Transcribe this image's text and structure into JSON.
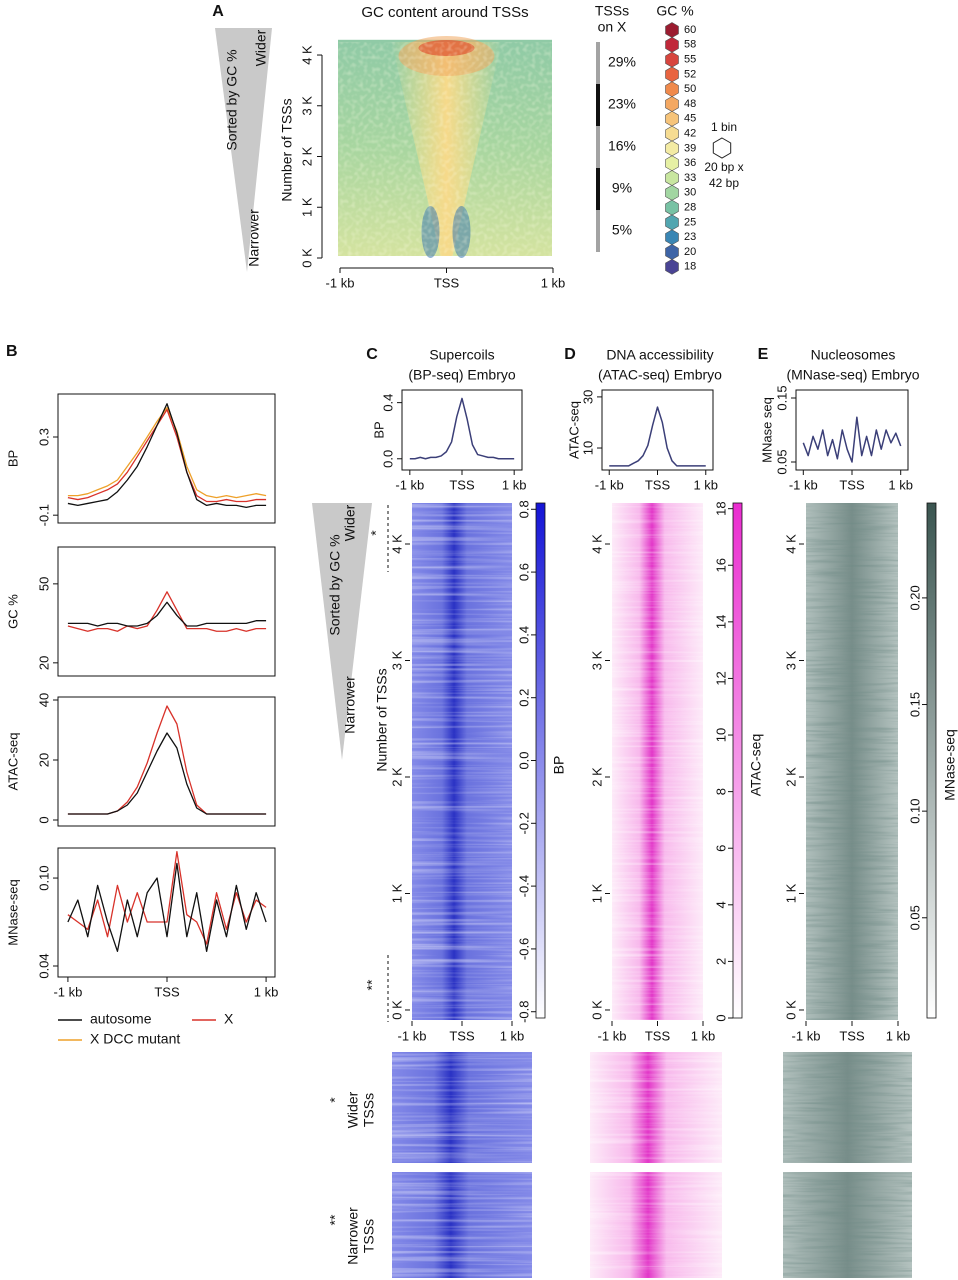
{
  "chart_data": [
    {
      "type": "heatmap",
      "panel": "A",
      "title": "GC content around TSSs",
      "ylabel": "Number of TSSs",
      "sort_label": "Sorted by GC %",
      "sort_ends": [
        "Wider",
        "Narrower"
      ],
      "xlim": [
        -1000,
        1000
      ],
      "xticks": [
        {
          "value": -1000,
          "label": "-1 kb"
        },
        {
          "value": 0,
          "label": "TSS"
        },
        {
          "value": 1000,
          "label": "1 kb"
        }
      ],
      "ylim": [
        0,
        4300
      ],
      "yticks": [
        {
          "value": 0,
          "label": "0 K"
        },
        {
          "value": 1000,
          "label": "1 K"
        },
        {
          "value": 2000,
          "label": "2 K"
        },
        {
          "value": 3000,
          "label": "3 K"
        },
        {
          "value": 4000,
          "label": "4 K"
        }
      ],
      "side_bar": {
        "title": [
          "TSSs",
          "on X"
        ],
        "values": [
          29,
          23,
          16,
          9,
          5
        ],
        "value_labels": [
          "29%",
          "23%",
          "16%",
          "9%",
          "5%"
        ],
        "colors": [
          "#a3a3a3",
          "#111111",
          "#a3a3a3",
          "#111111",
          "#a3a3a3"
        ]
      },
      "legend": {
        "title": "GC %",
        "values": [
          60,
          58,
          55,
          52,
          50,
          48,
          45,
          42,
          39,
          36,
          33,
          30,
          28,
          25,
          23,
          20,
          18
        ],
        "colors": [
          "#9b1c30",
          "#c0283a",
          "#d7453e",
          "#e86440",
          "#f08a4c",
          "#f4a862",
          "#f6c47a",
          "#f6dc92",
          "#f3eba4",
          "#e6f0a4",
          "#c8e6a0",
          "#a2d6a2",
          "#78c2a4",
          "#52a6b0",
          "#3a86b4",
          "#3e64a6",
          "#4a4494"
        ]
      },
      "bin_note": [
        "1 bin",
        "20 bp x",
        "42 bp"
      ]
    },
    {
      "type": "line",
      "panel": "B",
      "x": [
        -1000,
        -900,
        -800,
        -700,
        -600,
        -500,
        -400,
        -300,
        -200,
        -100,
        0,
        100,
        200,
        300,
        400,
        500,
        600,
        700,
        800,
        900,
        1000
      ],
      "xlim": [
        -1100,
        1090
      ],
      "xticks": [
        {
          "value": -1000,
          "label": "-1 kb"
        },
        {
          "value": 0,
          "label": "TSS"
        },
        {
          "value": 1000,
          "label": "1 kb"
        }
      ],
      "legend": [
        {
          "name": "autosome",
          "color": "#111111"
        },
        {
          "name": "X",
          "color": "#d8322a"
        },
        {
          "name": "X DCC mutant",
          "color": "#eea12a"
        }
      ],
      "rows": [
        {
          "ylabel": "BP",
          "ylim": [
            -0.14,
            0.52
          ],
          "yticks": [
            -0.1,
            0.3
          ],
          "series": [
            {
              "color": "#eea12a",
              "values": [
                0,
                0,
                0.01,
                0.03,
                0.05,
                0.08,
                0.15,
                0.22,
                0.3,
                0.38,
                0.45,
                0.33,
                0.15,
                0.03,
                0,
                -0.01,
                0,
                -0.01,
                0,
                0.01,
                0
              ]
            },
            {
              "color": "#d8322a",
              "values": [
                -0.01,
                -0.02,
                -0.01,
                0.01,
                0.03,
                0.06,
                0.12,
                0.2,
                0.28,
                0.36,
                0.44,
                0.3,
                0.12,
                0,
                -0.03,
                -0.03,
                -0.02,
                -0.03,
                -0.03,
                -0.02,
                -0.02
              ]
            },
            {
              "color": "#111111",
              "values": [
                -0.04,
                -0.05,
                -0.04,
                -0.03,
                -0.02,
                0.02,
                0.08,
                0.15,
                0.25,
                0.36,
                0.47,
                0.32,
                0.12,
                -0.02,
                -0.05,
                -0.04,
                -0.05,
                -0.05,
                -0.06,
                -0.05,
                -0.05
              ]
            }
          ]
        },
        {
          "ylabel": "GC %",
          "ylim": [
            15,
            64
          ],
          "yticks": [
            20,
            50
          ],
          "series": [
            {
              "color": "#d8322a",
              "values": [
                34,
                33,
                32,
                33,
                33,
                32,
                34,
                33,
                34,
                40,
                47,
                40,
                33,
                33,
                33,
                32,
                32,
                33,
                32,
                33,
                33
              ]
            },
            {
              "color": "#111111",
              "values": [
                35,
                35,
                35,
                34,
                35,
                35,
                34,
                34,
                35,
                38,
                43,
                38,
                34,
                34,
                35,
                35,
                35,
                35,
                35,
                36,
                36
              ]
            }
          ]
        },
        {
          "ylabel": "ATAC-seq",
          "ylim": [
            -2,
            41
          ],
          "yticks": [
            0,
            20,
            40
          ],
          "series": [
            {
              "color": "#d8322a",
              "values": [
                2,
                2,
                2,
                2,
                2,
                3,
                6,
                11,
                19,
                29,
                38,
                32,
                16,
                5,
                2,
                2,
                2,
                2,
                2,
                2,
                2
              ]
            },
            {
              "color": "#111111",
              "values": [
                2,
                2,
                2,
                2,
                2,
                3,
                5,
                9,
                16,
                23,
                29,
                24,
                12,
                4,
                2,
                2,
                2,
                2,
                2,
                2,
                2
              ]
            }
          ]
        },
        {
          "ylabel": "MNase-seq",
          "ylim": [
            0.0325,
            0.1205
          ],
          "yticks": [
            0.04,
            {
              "value": 0.1,
              "label": "0.10"
            }
          ],
          "series": [
            {
              "color": "#d8322a",
              "values": [
                0.075,
                0.07,
                0.065,
                0.085,
                0.06,
                0.095,
                0.07,
                0.09,
                0.07,
                0.07,
                0.07,
                0.118,
                0.075,
                0.07,
                0.055,
                0.09,
                0.065,
                0.09,
                0.07,
                0.085,
                0.08
              ]
            },
            {
              "color": "#111111",
              "values": [
                0.07,
                0.085,
                0.06,
                0.095,
                0.07,
                0.05,
                0.085,
                0.06,
                0.09,
                0.1,
                0.06,
                0.11,
                0.06,
                0.09,
                0.05,
                0.085,
                0.06,
                0.095,
                0.065,
                0.09,
                0.07
              ]
            }
          ]
        }
      ]
    },
    {
      "type": "heatmap",
      "panel": "C",
      "title": [
        "Supercoils",
        "(BP-seq) Embryo"
      ],
      "profile": {
        "type": "line",
        "ylabel": "BP",
        "color": "#3b3f78",
        "x": [
          -1000,
          -900,
          -800,
          -700,
          -600,
          -500,
          -400,
          -300,
          -200,
          -100,
          0,
          100,
          200,
          300,
          400,
          500,
          600,
          700,
          800,
          900,
          1000
        ],
        "values": [
          0,
          0,
          0.01,
          0,
          0.01,
          0.01,
          0.02,
          0.05,
          0.12,
          0.3,
          0.43,
          0.28,
          0.1,
          0.03,
          0.02,
          0.01,
          0.01,
          0,
          0,
          0,
          0
        ],
        "xlim": [
          -1150,
          1150
        ],
        "xticks": [
          {
            "value": -1000,
            "label": "-1 kb"
          },
          {
            "value": 0,
            "label": "TSS"
          },
          {
            "value": 1000,
            "label": "1 kb"
          }
        ],
        "ylim": [
          -0.08,
          0.49
        ],
        "yticks": [
          {
            "value": 0,
            "label": "0.0"
          },
          0.4
        ]
      },
      "ylabel": "Number of TSSs",
      "sort_label": "Sorted by GC %",
      "sort_ends": [
        "Wider",
        "Narrower"
      ],
      "markers": [
        "*",
        "**"
      ],
      "xlim": [
        -1000,
        1000
      ],
      "xticks": [
        {
          "value": -1000,
          "label": "-1 kb"
        },
        {
          "value": 0,
          "label": "TSS"
        },
        {
          "value": 1000,
          "label": "1 kb"
        }
      ],
      "ylim": [
        -86,
        4352
      ],
      "yticks": [
        {
          "value": 0,
          "label": "0 K"
        },
        {
          "value": 1000,
          "label": "1 K"
        },
        {
          "value": 2000,
          "label": "2 K"
        },
        {
          "value": 3000,
          "label": "3 K"
        },
        {
          "value": 4000,
          "label": "4 K"
        }
      ],
      "colorbar": {
        "label": "BP",
        "lim": [
          -0.82,
          0.82
        ],
        "colors": [
          "#ffffff",
          "#1414d6"
        ],
        "ticks": [
          -0.8,
          -0.6,
          -0.4,
          -0.2,
          {
            "value": 0,
            "label": "0.0"
          },
          0.2,
          0.4,
          0.6,
          0.8
        ]
      },
      "zoom_labels": [
        [
          "*",
          "Wider",
          "TSSs"
        ],
        [
          "**",
          "Narrower",
          "TSSs"
        ]
      ]
    },
    {
      "type": "heatmap",
      "panel": "D",
      "title": [
        "DNA accessibility",
        "(ATAC-seq) Embryo"
      ],
      "profile": {
        "type": "line",
        "ylabel": "ATAC-seq",
        "color": "#3b3f78",
        "x": [
          -1000,
          -900,
          -800,
          -700,
          -600,
          -500,
          -400,
          -300,
          -200,
          -100,
          0,
          100,
          200,
          300,
          400,
          500,
          600,
          700,
          800,
          900,
          1000
        ],
        "values": [
          3,
          3,
          3,
          3,
          3,
          4,
          5,
          7,
          11,
          19,
          26,
          20,
          10,
          5,
          3,
          3,
          3,
          3,
          3,
          3,
          3
        ],
        "xlim": [
          -1150,
          1150
        ],
        "xticks": [
          {
            "value": -1000,
            "label": "-1 kb"
          },
          {
            "value": 0,
            "label": "TSS"
          },
          {
            "value": 1000,
            "label": "1 kb"
          }
        ],
        "ylim": [
          1.4,
          32.7
        ],
        "yticks": [
          10,
          30
        ]
      },
      "xlim": [
        -1000,
        1000
      ],
      "xticks": [
        {
          "value": -1000,
          "label": "-1 kb"
        },
        {
          "value": 0,
          "label": "TSS"
        },
        {
          "value": 1000,
          "label": "1 kb"
        }
      ],
      "ylim": [
        -86,
        4352
      ],
      "yticks": [
        {
          "value": 0,
          "label": "0 K"
        },
        {
          "value": 1000,
          "label": "1 K"
        },
        {
          "value": 2000,
          "label": "2 K"
        },
        {
          "value": 3000,
          "label": "3 K"
        },
        {
          "value": 4000,
          "label": "4 K"
        }
      ],
      "colorbar": {
        "label": "ATAC-seq",
        "lim": [
          0,
          18.2
        ],
        "colors": [
          "#ffffff",
          "#ea2cd0"
        ],
        "ticks": [
          0,
          2,
          4,
          6,
          8,
          10,
          12,
          14,
          16,
          18
        ]
      }
    },
    {
      "type": "heatmap",
      "panel": "E",
      "title": [
        "Nucleosomes",
        "(MNase-seq) Embryo"
      ],
      "profile": {
        "type": "line",
        "ylabel": "MNase seq",
        "color": "#3b3f78",
        "x": [
          -1000,
          -900,
          -800,
          -700,
          -600,
          -500,
          -400,
          -300,
          -200,
          -100,
          0,
          100,
          200,
          300,
          400,
          500,
          600,
          700,
          800,
          900,
          1000
        ],
        "values": [
          0.08,
          0.06,
          0.09,
          0.07,
          0.1,
          0.06,
          0.085,
          0.055,
          0.1,
          0.07,
          0.05,
          0.12,
          0.06,
          0.09,
          0.06,
          0.1,
          0.07,
          0.1,
          0.08,
          0.095,
          0.075
        ],
        "xlim": [
          -1150,
          1150
        ],
        "xticks": [
          {
            "value": -1000,
            "label": "-1 kb"
          },
          {
            "value": 0,
            "label": "TSS"
          },
          {
            "value": 1000,
            "label": "1 kb"
          }
        ],
        "ylim": [
          0.0375,
          0.1625
        ],
        "yticks": [
          0.05,
          0.15
        ]
      },
      "xlim": [
        -1000,
        1000
      ],
      "xticks": [
        {
          "value": -1000,
          "label": "-1 kb"
        },
        {
          "value": 0,
          "label": "TSS"
        },
        {
          "value": 1000,
          "label": "1 kb"
        }
      ],
      "ylim": [
        -86,
        4352
      ],
      "yticks": [
        {
          "value": 0,
          "label": "0 K"
        },
        {
          "value": 1000,
          "label": "1 K"
        },
        {
          "value": 2000,
          "label": "2 K"
        },
        {
          "value": 3000,
          "label": "3 K"
        },
        {
          "value": 4000,
          "label": "4 K"
        }
      ],
      "colorbar": {
        "label": "MNase-seq",
        "lim": [
          0.003,
          0.2445
        ],
        "colors": [
          "#ffffff",
          "#3a5550"
        ],
        "ticks": [
          0.05,
          {
            "value": 0.1,
            "label": "0.10"
          },
          0.15,
          {
            "value": 0.2,
            "label": "0.20"
          }
        ]
      }
    }
  ]
}
